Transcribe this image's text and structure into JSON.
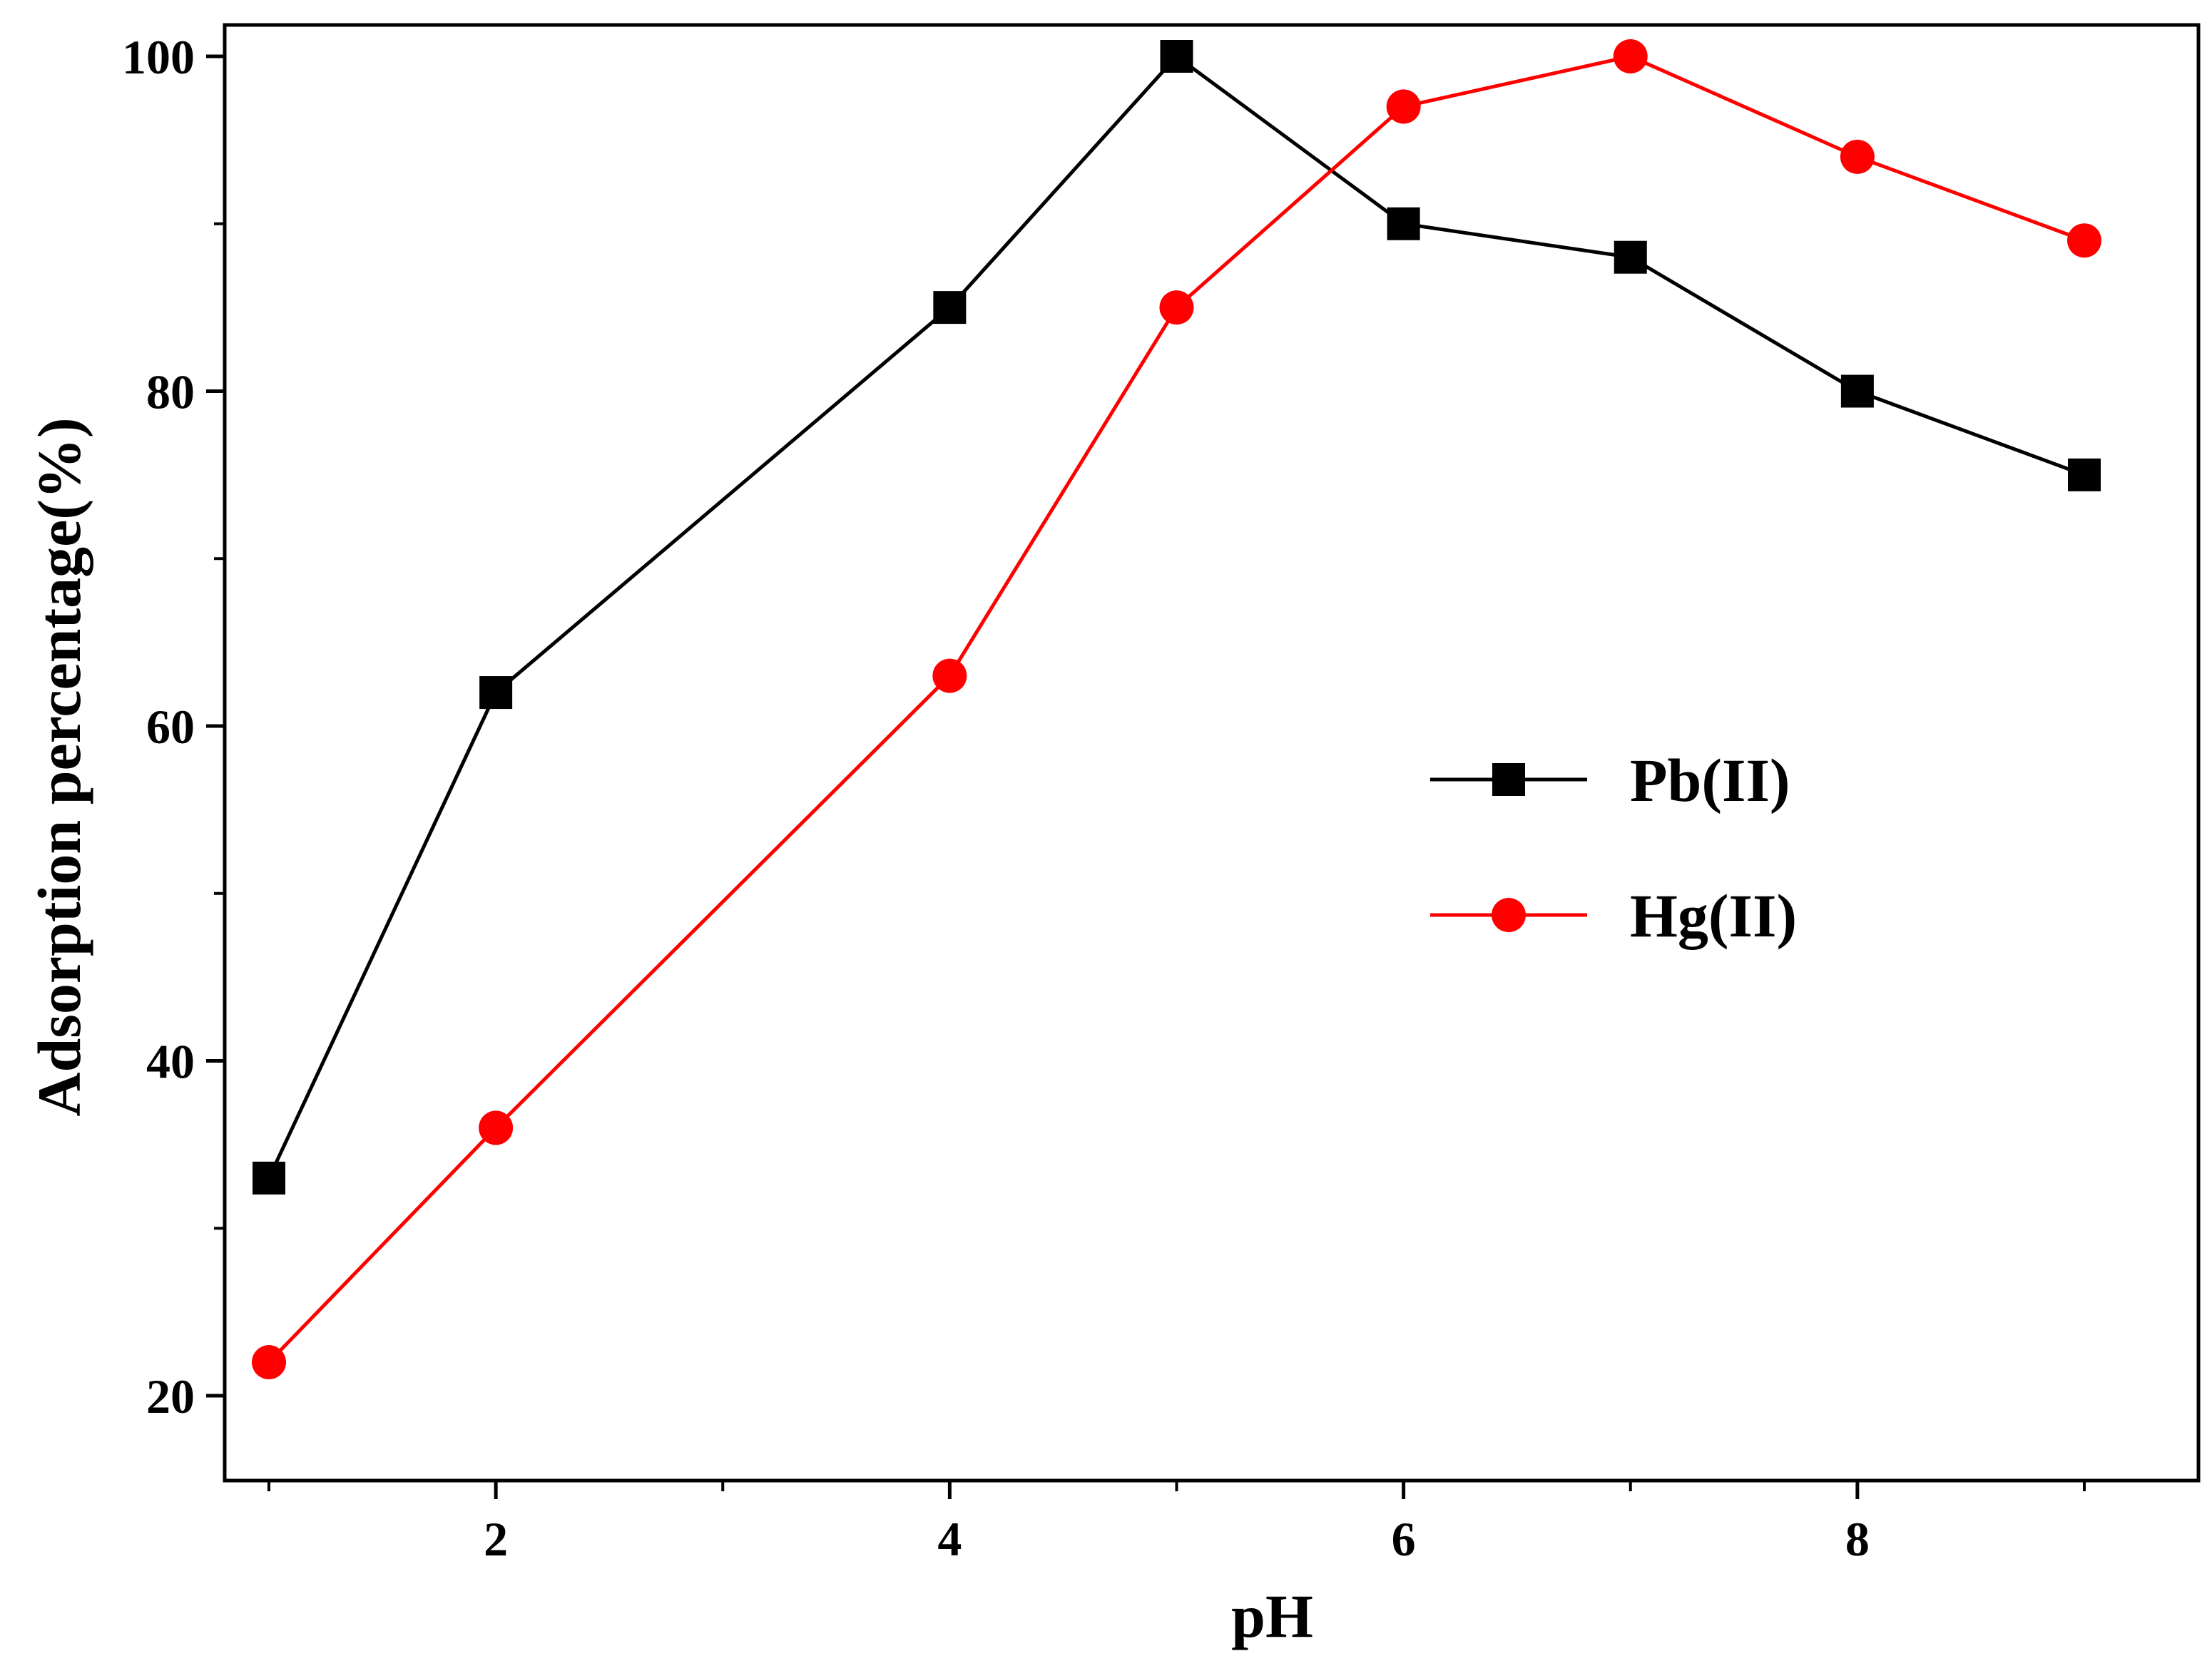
{
  "chart_data": {
    "type": "line",
    "title": "",
    "xlabel": "pH",
    "ylabel": "Adsorption percentage(%)",
    "xlim": [
      0.8,
      9.5
    ],
    "ylim": [
      15,
      100
    ],
    "x_ticks": [
      2,
      4,
      6,
      8
    ],
    "x_tick_labels": [
      "2",
      "4",
      "6",
      "8"
    ],
    "x_minor_ticks": [
      1,
      3,
      5,
      7,
      9
    ],
    "y_ticks": [
      20,
      40,
      60,
      80,
      100
    ],
    "y_tick_labels": [
      "20",
      "40",
      "60",
      "80",
      "100"
    ],
    "y_minor_ticks": [
      30,
      50,
      70,
      90
    ],
    "grid": false,
    "legend_position": "center-right",
    "series": [
      {
        "name": "Pb(II)",
        "color": "#000000",
        "marker": "square",
        "x": [
          1,
          2,
          4,
          5,
          6,
          7,
          8,
          9
        ],
        "values": [
          33,
          62,
          85,
          100,
          90,
          88,
          80,
          75
        ]
      },
      {
        "name": "Hg(II)",
        "color": "#ff0000",
        "marker": "circle",
        "x": [
          1,
          2,
          4,
          5,
          6,
          7,
          8,
          9
        ],
        "values": [
          22,
          36,
          63,
          85,
          97,
          100,
          94,
          89
        ]
      }
    ]
  }
}
